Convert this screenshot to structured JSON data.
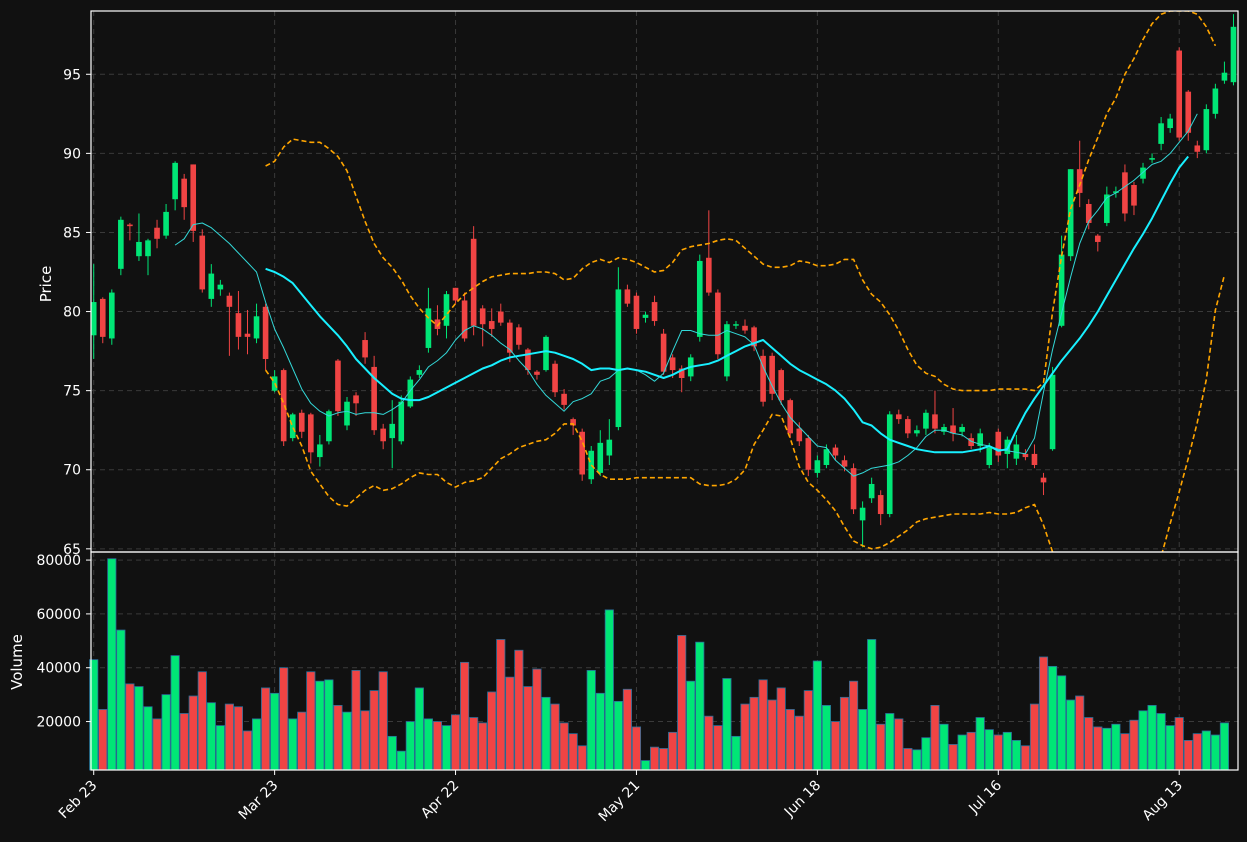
{
  "chart_data": {
    "type": "candlestick",
    "background": "#111111",
    "colors": {
      "up": "#00e676",
      "down": "#f04444",
      "ma_fast": "#33d8d8",
      "ma_slow": "#18f0ff",
      "bollinger": "#ffa500",
      "grid": "#3a3a3a"
    },
    "price_panel": {
      "ylabel": "Price",
      "ylim": [
        64.8,
        99
      ],
      "yticks": [
        65,
        70,
        75,
        80,
        85,
        90,
        95
      ]
    },
    "volume_panel": {
      "ylabel": "Volume",
      "ylim": [
        2000,
        83000
      ],
      "yticks": [
        20000,
        40000,
        60000,
        80000
      ]
    },
    "x_ticks": [
      {
        "label": "Feb 23",
        "index": 0
      },
      {
        "label": "Mar 23",
        "index": 20
      },
      {
        "label": "Apr 22",
        "index": 40
      },
      {
        "label": "May 21",
        "index": 60
      },
      {
        "label": "Jun 18",
        "index": 80
      },
      {
        "label": "Jul 16",
        "index": 100
      },
      {
        "label": "Aug 13",
        "index": 120
      }
    ],
    "x_range": [
      -0.3,
      126.5
    ],
    "candles": [
      [
        78.5,
        80.6,
        83,
        77
      ],
      [
        80.8,
        78.4,
        80.9,
        78
      ],
      [
        78.3,
        81.2,
        81.4,
        77.9
      ],
      [
        82.7,
        85.8,
        86,
        82.3
      ],
      [
        85.5,
        85.4,
        85.6,
        84.5
      ],
      [
        83.5,
        84.4,
        86.2,
        83.2
      ],
      [
        83.5,
        84.5,
        84.6,
        82.3
      ],
      [
        85.3,
        84.6,
        85.8,
        84
      ],
      [
        84.8,
        86.3,
        86.8,
        84.6
      ],
      [
        87.1,
        89.4,
        89.5,
        86.4
      ],
      [
        88.4,
        86.6,
        88.7,
        85.8
      ],
      [
        89.3,
        85.1,
        89.3,
        84.4
      ],
      [
        84.8,
        81.4,
        85.2,
        81.2
      ],
      [
        80.8,
        82.4,
        83,
        80.3
      ],
      [
        81.4,
        81.7,
        82,
        81
      ],
      [
        81,
        80.3,
        81.2,
        77.2
      ],
      [
        79.9,
        78.4,
        81.3,
        77.6
      ],
      [
        78.6,
        78.4,
        80.1,
        77.3
      ],
      [
        78.3,
        79.7,
        80.5,
        78
      ],
      [
        80.3,
        77,
        80.5,
        76.3
      ],
      [
        75,
        75.9,
        76.3,
        74.9
      ],
      [
        76.3,
        71.8,
        76.4,
        71.5
      ],
      [
        72,
        73.5,
        73.6,
        71.8
      ],
      [
        73.6,
        72.4,
        73.8,
        72
      ],
      [
        73.5,
        71.1,
        73.6,
        70.4
      ],
      [
        70.8,
        71.6,
        72.2,
        70.2
      ],
      [
        71.8,
        73.7,
        73.8,
        71.6
      ],
      [
        76.9,
        73.7,
        77,
        73.4
      ],
      [
        72.8,
        74.3,
        74.6,
        72.5
      ],
      [
        74.7,
        74.2,
        74.9,
        73.4
      ],
      [
        78.2,
        77.1,
        78.7,
        76.7
      ],
      [
        76.5,
        72.5,
        77.2,
        72.2
      ],
      [
        72.6,
        71.8,
        72.9,
        71.3
      ],
      [
        72,
        72.9,
        74.4,
        70.1
      ],
      [
        71.8,
        74.3,
        74.7,
        71.6
      ],
      [
        74,
        75.7,
        75.9,
        73.9
      ],
      [
        76,
        76.3,
        76.6,
        75.8
      ],
      [
        77.7,
        80.2,
        81.5,
        77.4
      ],
      [
        79.5,
        78.9,
        80.4,
        78.5
      ],
      [
        79.1,
        81.1,
        81.3,
        78.3
      ],
      [
        81.5,
        80.7,
        81.5,
        80.5
      ],
      [
        80.7,
        78.3,
        81.2,
        78.1
      ],
      [
        84.6,
        79.1,
        85.4,
        78.5
      ],
      [
        80.2,
        79.2,
        80.4,
        77.8
      ],
      [
        79.4,
        78.9,
        80.2,
        78.4
      ],
      [
        80,
        79.3,
        80.5,
        79.1
      ],
      [
        79.3,
        77.4,
        79.5,
        76.8
      ],
      [
        79,
        77.9,
        79.2,
        77.6
      ],
      [
        77.6,
        76.3,
        77.7,
        76
      ],
      [
        76.2,
        76,
        76.3,
        75.7
      ],
      [
        76.3,
        78.4,
        78.5,
        76.2
      ],
      [
        76.7,
        74.9,
        76.9,
        74.6
      ],
      [
        74.8,
        74.1,
        75.1,
        73.8
      ],
      [
        73.2,
        72.8,
        73.3,
        72.2
      ],
      [
        72.4,
        69.7,
        72.6,
        69.3
      ],
      [
        69.4,
        71.2,
        71.5,
        69.1
      ],
      [
        69.8,
        71.7,
        72.5,
        69.6
      ],
      [
        70.9,
        71.9,
        73.2,
        70.3
      ],
      [
        72.7,
        81.4,
        82.8,
        72.5
      ],
      [
        81.4,
        80.5,
        81.7,
        80.3
      ],
      [
        81,
        78.9,
        81.2,
        78.6
      ],
      [
        79.6,
        79.8,
        80,
        79.3
      ],
      [
        80.6,
        79.4,
        81,
        79.1
      ],
      [
        78.6,
        76.2,
        78.9,
        76
      ],
      [
        77.1,
        76.3,
        77.3,
        75.8
      ],
      [
        76.4,
        75.8,
        76.6,
        74.9
      ],
      [
        75.9,
        77.1,
        77.3,
        75.6
      ],
      [
        78.4,
        83.2,
        83.6,
        78.1
      ],
      [
        83.4,
        81.2,
        86.4,
        81
      ],
      [
        81.2,
        77.3,
        81.4,
        77
      ],
      [
        75.9,
        79.2,
        79.4,
        75.6
      ],
      [
        79.2,
        79.2,
        79.4,
        78.9
      ],
      [
        79.1,
        78.8,
        79.5,
        78.6
      ],
      [
        79,
        77.8,
        79.1,
        77.5
      ],
      [
        77.2,
        74.3,
        77.6,
        74
      ],
      [
        77.2,
        74.8,
        77.4,
        74.4
      ],
      [
        76.3,
        74.4,
        76.4,
        74.1
      ],
      [
        74.4,
        72.3,
        74.5,
        72
      ],
      [
        72.6,
        71.8,
        73,
        71.5
      ],
      [
        72,
        70,
        72.2,
        69.6
      ],
      [
        69.8,
        70.6,
        70.9,
        69.5
      ],
      [
        70.3,
        71.3,
        71.6,
        70.1
      ],
      [
        71.4,
        70.9,
        71.6,
        70.6
      ],
      [
        70.6,
        70.2,
        70.9,
        69.9
      ],
      [
        70.1,
        67.5,
        70.4,
        67.2
      ],
      [
        66.8,
        67.6,
        68,
        65.1
      ],
      [
        68.2,
        69.1,
        69.5,
        67.9
      ],
      [
        68.4,
        67.2,
        68.7,
        66.5
      ],
      [
        67.2,
        73.5,
        73.7,
        67
      ],
      [
        73.5,
        73.2,
        73.8,
        72.9
      ],
      [
        73.2,
        72.3,
        73.4,
        72
      ],
      [
        72.3,
        72.5,
        72.8,
        72.1
      ],
      [
        72.6,
        73.6,
        73.8,
        72.2
      ],
      [
        73.5,
        72.6,
        75,
        72.3
      ],
      [
        72.4,
        72.7,
        72.9,
        72.2
      ],
      [
        72.8,
        72.3,
        73.9,
        71.8
      ],
      [
        72.4,
        72.7,
        72.9,
        72.1
      ],
      [
        72,
        71.5,
        72.3,
        71.3
      ],
      [
        71.5,
        72.3,
        72.6,
        71.1
      ],
      [
        70.3,
        71.4,
        71.7,
        70.1
      ],
      [
        72.4,
        70.9,
        72.6,
        70.5
      ],
      [
        71,
        71.9,
        72.1,
        70.1
      ],
      [
        70.7,
        71.6,
        72.2,
        70.3
      ],
      [
        71,
        70.8,
        71.3,
        70.6
      ],
      [
        71,
        70.3,
        71.6,
        70.1
      ],
      [
        69.5,
        69.2,
        69.8,
        68.4
      ],
      [
        71.3,
        76,
        76.5,
        71.2
      ],
      [
        79.1,
        83.6,
        84.8,
        79
      ],
      [
        83.5,
        89,
        89,
        83.2
      ],
      [
        89,
        87.5,
        90.8,
        86.6
      ],
      [
        86.8,
        85.6,
        87.1,
        85.2
      ],
      [
        84.8,
        84.4,
        84.9,
        83.8
      ],
      [
        85.6,
        87.4,
        87.9,
        85.4
      ],
      [
        87.5,
        87.6,
        87.9,
        87.2
      ],
      [
        88.8,
        86.2,
        89.3,
        85.7
      ],
      [
        88,
        86.7,
        88.2,
        86.1
      ],
      [
        88.4,
        89.1,
        89.4,
        88.1
      ],
      [
        89.6,
        89.7,
        90,
        89.4
      ],
      [
        90.6,
        91.9,
        92.3,
        90.2
      ],
      [
        91.6,
        92.2,
        92.5,
        91.3
      ],
      [
        96.5,
        91,
        96.7,
        90.8
      ],
      [
        93.9,
        91.3,
        94,
        90.8
      ],
      [
        90.5,
        90.1,
        90.8,
        89.7
      ],
      [
        90.2,
        92.8,
        93.1,
        90
      ],
      [
        92.5,
        94.1,
        94.4,
        92.2
      ],
      [
        94.6,
        95.1,
        95.8,
        94.4
      ],
      [
        94.5,
        98,
        98.8,
        94.3
      ]
    ],
    "volume": [
      43000,
      24500,
      80500,
      54000,
      34000,
      33000,
      25500,
      21000,
      30000,
      44500,
      23000,
      29500,
      38500,
      27000,
      18500,
      26500,
      25500,
      16500,
      21000,
      32500,
      30500,
      40000,
      21000,
      23500,
      38500,
      35000,
      35500,
      26000,
      23500,
      39000,
      24000,
      31500,
      38500,
      14500,
      9000,
      20000,
      32500,
      21000,
      20000,
      18500,
      22500,
      42000,
      21500,
      19500,
      31000,
      50500,
      36500,
      46500,
      33000,
      39500,
      29000,
      26500,
      19500,
      15500,
      11000,
      39000,
      30500,
      61500,
      27500,
      32000,
      18000,
      5500,
      10500,
      10000,
      16000,
      52000,
      35000,
      49500,
      22000,
      18500,
      36000,
      14500,
      26500,
      29000,
      35500,
      28000,
      32500,
      24500,
      22000,
      31500,
      42500,
      26000,
      20000,
      29000,
      35000,
      24500,
      50500,
      19000,
      23000,
      21000,
      10000,
      9500,
      14000,
      26000,
      19000,
      11500,
      15000,
      16000,
      21500,
      17000,
      15000,
      16000,
      13000,
      11000,
      26500,
      44000,
      40500,
      37000,
      28000,
      29500,
      21500,
      18000,
      17500,
      19000,
      15500,
      20500,
      24000,
      26000,
      23000,
      18500,
      21500,
      13000,
      15500,
      16500,
      15000,
      19500
    ],
    "ma_fast": {
      "start": 9,
      "values": [
        84.2,
        84.6,
        85.5,
        85.6,
        85.3,
        84.8,
        84.3,
        83.7,
        83.1,
        82.5,
        80.6,
        78.9,
        77.7,
        76.4,
        75.1,
        74.2,
        73.7,
        73.4,
        73.6,
        73.7,
        73.5,
        73.6,
        73.6,
        73.5,
        73.8,
        74.2,
        75,
        75.7,
        76.5,
        76.9,
        77.4,
        78.2,
        78.8,
        79.1,
        78.9,
        78.5,
        78,
        77.6,
        76.9,
        76.3,
        75.4,
        74.7,
        74.2,
        73.7,
        74.3,
        74.5,
        74.8,
        75.6,
        75.8,
        76.3,
        76.4,
        76.3,
        76,
        75.6,
        76.1,
        77.5,
        78.8,
        78.8,
        78.6,
        78.5,
        78.5,
        78.8,
        78.6,
        78.4,
        77.9,
        76.5,
        75.3,
        74.2,
        73.3,
        72.7,
        72.1,
        71.5,
        71.4,
        70.6,
        70.1,
        69.6,
        69.8,
        70.1,
        70.2,
        70.3,
        70.5,
        70.9,
        71.4,
        72.1,
        72.5,
        72.5,
        72.3,
        72.2,
        71.8,
        71.6,
        71.5,
        71.3,
        71.2,
        71.1,
        71,
        72,
        74.9,
        77.6,
        79.9,
        82.2,
        84.3,
        85.7,
        86.4,
        87.2,
        87.5,
        87.9,
        88.3,
        88.8,
        89.3,
        89.5,
        90,
        90.7,
        91.4,
        92.5
      ]
    },
    "ma_slow": {
      "start": 19,
      "values": [
        82.7,
        82.5,
        82.2,
        81.8,
        81.1,
        80.4,
        79.7,
        79.1,
        78.5,
        77.8,
        77,
        76.4,
        75.8,
        75.3,
        74.8,
        74.5,
        74.4,
        74.4,
        74.6,
        74.9,
        75.2,
        75.5,
        75.8,
        76.1,
        76.4,
        76.6,
        76.9,
        77.1,
        77.2,
        77.3,
        77.4,
        77.5,
        77.4,
        77.2,
        77,
        76.7,
        76.3,
        76.4,
        76.4,
        76.3,
        76.4,
        76.3,
        76.2,
        76,
        75.8,
        76,
        76.3,
        76.5,
        76.6,
        76.7,
        76.9,
        77.2,
        77.5,
        77.8,
        78,
        78.2,
        77.7,
        77.2,
        76.7,
        76.3,
        76,
        75.7,
        75.4,
        75,
        74.5,
        73.8,
        73,
        72.8,
        72.3,
        71.9,
        71.7,
        71.5,
        71.3,
        71.2,
        71.1,
        71.1,
        71.1,
        71.1,
        71.2,
        71.3,
        71.5,
        71.2,
        71.3,
        72.5,
        73.6,
        74.5,
        75.3,
        76.1,
        76.9,
        77.6,
        78.3,
        79.1,
        80,
        81,
        82,
        83,
        84,
        84.9,
        85.9,
        87,
        88.1,
        89.1,
        89.8
      ]
    },
    "bollinger_upper": {
      "start": 19,
      "values": [
        89.2,
        89.5,
        90.4,
        90.9,
        90.8,
        90.7,
        90.7,
        90.3,
        89.8,
        88.9,
        87.3,
        85.7,
        84.3,
        83.4,
        82.8,
        82,
        81,
        80.2,
        79.6,
        79.1,
        79.8,
        80.5,
        81.1,
        81.5,
        81.9,
        82.2,
        82.3,
        82.4,
        82.4,
        82.4,
        82.5,
        82.5,
        82.4,
        82,
        82.1,
        82.7,
        83.1,
        83.3,
        83.1,
        83.4,
        83.3,
        83.1,
        82.8,
        82.5,
        82.6,
        83.1,
        83.9,
        84.1,
        84.2,
        84.3,
        84.5,
        84.6,
        84.5,
        84,
        83.5,
        83,
        82.8,
        82.8,
        82.9,
        83.2,
        83.1,
        82.9,
        82.9,
        83,
        83.3,
        83.3,
        82,
        81.1,
        80.6,
        79.8,
        78.8,
        77.6,
        76.6,
        76.1,
        75.9,
        75.4,
        75.1,
        75,
        75,
        75,
        75,
        75.1,
        75.1,
        75.1,
        75.1,
        75,
        75.5,
        80,
        83.5,
        86.5,
        88,
        89.6,
        91,
        92.5,
        93.5,
        95,
        96,
        97.2,
        98.2,
        98.8,
        99,
        99,
        99,
        98.8,
        98,
        96.8
      ]
    },
    "bollinger_lower": {
      "start": 19,
      "values": [
        76.3,
        75.5,
        74.2,
        72.7,
        71.5,
        69.9,
        69.1,
        68.3,
        67.8,
        67.7,
        68.2,
        68.7,
        69,
        68.7,
        68.8,
        69.1,
        69.5,
        69.8,
        69.7,
        69.7,
        69.2,
        68.9,
        69.2,
        69.3,
        69.5,
        70.1,
        70.7,
        71,
        71.4,
        71.6,
        71.8,
        71.9,
        72.3,
        72.9,
        72.9,
        71.8,
        70.3,
        69.7,
        69.4,
        69.4,
        69.4,
        69.5,
        69.5,
        69.5,
        69.5,
        69.5,
        69.5,
        69.5,
        69.1,
        69,
        69,
        69.1,
        69.4,
        70,
        71.6,
        72.5,
        73.5,
        73.4,
        72,
        70.2,
        69.2,
        68.7,
        68.1,
        67.4,
        66.4,
        65.5,
        65.2,
        65,
        65.1,
        65.4,
        65.8,
        66.2,
        66.7,
        66.9,
        67,
        67.1,
        67.2,
        67.2,
        67.2,
        67.2,
        67.3,
        67.2,
        67.2,
        67.3,
        67.6,
        67.8,
        66.5,
        64.8,
        63.5,
        62,
        60.5,
        59,
        57.8,
        57,
        57,
        57.5,
        59,
        61,
        63,
        64.5,
        66.6,
        68.6,
        70.7,
        73,
        75.7,
        80.1,
        82.3
      ]
    }
  }
}
